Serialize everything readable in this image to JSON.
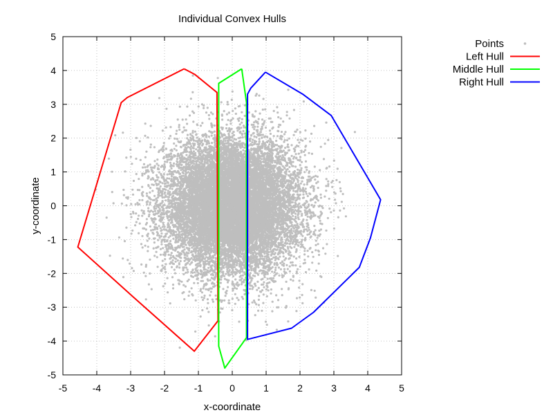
{
  "chart_data": {
    "type": "scatter",
    "title": "Individual Convex Hulls",
    "xlabel": "x-coordinate",
    "ylabel": "y-coordinate",
    "xlim": [
      -5,
      5
    ],
    "ylim": [
      -5,
      5
    ],
    "xticks": [
      -5,
      -4,
      -3,
      -2,
      -1,
      0,
      1,
      2,
      3,
      4,
      5
    ],
    "yticks": [
      -5,
      -4,
      -3,
      -2,
      -1,
      0,
      1,
      2,
      3,
      4,
      5
    ],
    "xtick_labels": [
      "-5",
      "-4",
      "-3",
      "-2",
      "-1",
      "0",
      "1",
      "2",
      "3",
      "4",
      "5"
    ],
    "ytick_labels": [
      "-5",
      "-4",
      "-3",
      "-2",
      "-1",
      "0",
      "1",
      "2",
      "3",
      "4",
      "5"
    ],
    "grid": true,
    "legend_position": "top-right outside",
    "points": {
      "name": "Points",
      "color": "#bebebe",
      "distribution": "bivariate normal, mean (0,0), sd ~1.0",
      "representative_count": 14000
    },
    "series": [
      {
        "name": "Left Hull",
        "color": "#ff0000",
        "points": [
          [
            -1.42,
            4.05
          ],
          [
            -1.1,
            3.88
          ],
          [
            -0.45,
            3.35
          ],
          [
            -0.42,
            -3.4
          ],
          [
            -1.12,
            -4.3
          ],
          [
            -2.92,
            -2.7
          ],
          [
            -4.56,
            -1.22
          ],
          [
            -3.28,
            3.05
          ],
          [
            -3.1,
            3.2
          ],
          [
            -1.42,
            4.05
          ]
        ]
      },
      {
        "name": "Middle Hull",
        "color": "#00ff00",
        "points": [
          [
            0.28,
            4.05
          ],
          [
            0.42,
            3.05
          ],
          [
            0.42,
            -3.9
          ],
          [
            -0.22,
            -4.8
          ],
          [
            -0.4,
            -4.15
          ],
          [
            -0.4,
            3.62
          ],
          [
            0.28,
            4.05
          ]
        ]
      },
      {
        "name": "Right Hull",
        "color": "#0000ff",
        "points": [
          [
            0.98,
            3.95
          ],
          [
            2.08,
            3.3
          ],
          [
            2.92,
            2.67
          ],
          [
            4.38,
            0.18
          ],
          [
            4.08,
            -0.95
          ],
          [
            3.75,
            -1.82
          ],
          [
            2.4,
            -3.15
          ],
          [
            1.75,
            -3.62
          ],
          [
            0.45,
            -3.95
          ],
          [
            0.45,
            3.3
          ],
          [
            0.55,
            3.48
          ],
          [
            0.98,
            3.95
          ]
        ]
      }
    ]
  }
}
